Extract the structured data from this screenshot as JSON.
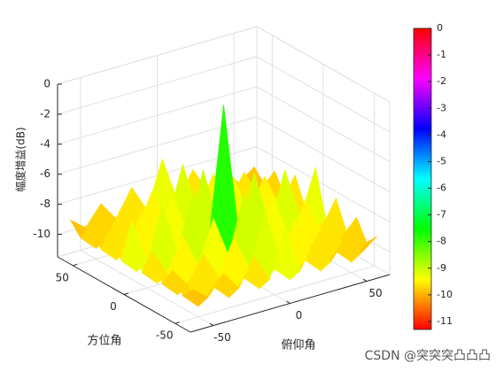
{
  "chart_data": {
    "type": "surface",
    "zlabel": "幅度增益(dB)",
    "xlabel": "俯仰角",
    "ylabel": "方位角",
    "watermark": "CSDN @突突突凸凸凸",
    "x": [
      -60,
      -50,
      -40,
      -30,
      -20,
      -10,
      0,
      10,
      20,
      30,
      40,
      50,
      60
    ],
    "y": [
      -60,
      -50,
      -40,
      -30,
      -20,
      -10,
      0,
      10,
      20,
      30,
      40,
      50,
      60
    ],
    "z": [
      [
        -9.0,
        -9.8,
        -8.5,
        -9.8,
        -8.0,
        -9.8,
        -6.7,
        -9.8,
        -8.0,
        -9.8,
        -8.5,
        -9.8,
        -9.0
      ],
      [
        -9.8,
        -10.8,
        -9.8,
        -10.8,
        -9.8,
        -10.8,
        -9.8,
        -10.8,
        -9.8,
        -10.8,
        -9.8,
        -10.8,
        -9.8
      ],
      [
        -8.5,
        -9.8,
        -8.0,
        -9.8,
        -7.5,
        -9.8,
        -6.3,
        -9.8,
        -7.5,
        -9.8,
        -8.0,
        -9.8,
        -8.5
      ],
      [
        -9.8,
        -10.8,
        -9.8,
        -10.8,
        -9.8,
        -10.8,
        -9.8,
        -10.8,
        -9.8,
        -10.8,
        -9.8,
        -10.8,
        -9.8
      ],
      [
        -8.0,
        -9.8,
        -7.5,
        -9.8,
        -7.0,
        -9.8,
        -5.9,
        -9.8,
        -7.0,
        -9.8,
        -7.5,
        -9.8,
        -8.0
      ],
      [
        -9.8,
        -10.8,
        -9.8,
        -10.8,
        -9.8,
        -10.8,
        -9.8,
        -10.8,
        -9.8,
        -10.8,
        -9.8,
        -10.8,
        -9.8
      ],
      [
        -6.7,
        -9.8,
        -6.3,
        -9.8,
        -5.9,
        -9.8,
        -0.8,
        -9.8,
        -5.9,
        -9.8,
        -6.3,
        -9.8,
        -6.7
      ],
      [
        -9.8,
        -10.8,
        -9.8,
        -10.8,
        -9.8,
        -10.8,
        -9.8,
        -10.8,
        -9.8,
        -10.8,
        -9.8,
        -10.8,
        -9.8
      ],
      [
        -8.0,
        -9.8,
        -7.5,
        -9.8,
        -7.0,
        -9.8,
        -5.9,
        -9.8,
        -7.0,
        -9.8,
        -7.5,
        -9.8,
        -8.0
      ],
      [
        -9.8,
        -10.8,
        -9.8,
        -10.8,
        -9.8,
        -10.8,
        -9.8,
        -10.8,
        -9.8,
        -10.8,
        -9.8,
        -10.8,
        -9.8
      ],
      [
        -8.5,
        -9.8,
        -8.0,
        -9.8,
        -7.5,
        -9.8,
        -6.3,
        -9.8,
        -7.5,
        -9.8,
        -8.0,
        -9.8,
        -8.5
      ],
      [
        -9.8,
        -10.8,
        -9.8,
        -10.8,
        -9.8,
        -10.8,
        -9.8,
        -10.8,
        -9.8,
        -10.8,
        -9.8,
        -10.8,
        -9.8
      ],
      [
        -9.0,
        -9.8,
        -8.5,
        -9.8,
        -8.0,
        -9.8,
        -6.7,
        -9.8,
        -8.0,
        -9.8,
        -8.5,
        -9.8,
        -9.0
      ]
    ],
    "xlim": [
      -65,
      65
    ],
    "ylim": [
      -65,
      65
    ],
    "zlim": [
      -11.5,
      0
    ],
    "xticks": [
      -50,
      0,
      50
    ],
    "yticks": [
      -50,
      0,
      50
    ],
    "zticks": [
      -10,
      -8,
      -6,
      -4,
      -2,
      0
    ],
    "grid": true,
    "colormap": "hsv",
    "clim": [
      -11.3,
      0
    ],
    "colorbar_ticks": [
      -11,
      -10,
      -9,
      -8,
      -7,
      -6,
      -5,
      -4,
      -3,
      -2,
      -1,
      0
    ]
  }
}
